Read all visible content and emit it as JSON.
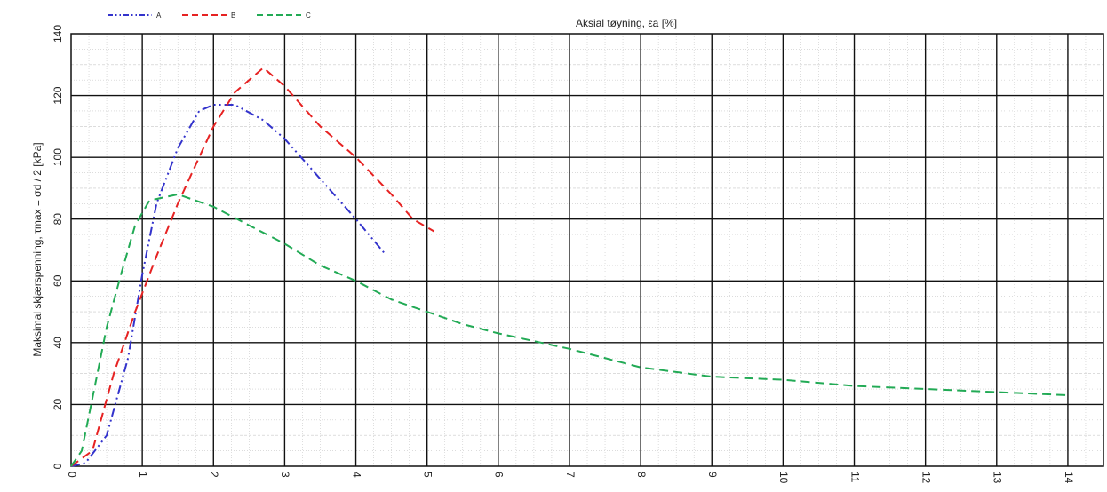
{
  "chart_data": {
    "type": "line",
    "xlabel": "Aksial tøyning, εa [%]",
    "ylabel": "Maksimal skjærspenning, τmax = σd / 2 [kPa]",
    "xlim": [
      0,
      14.5
    ],
    "ylim": [
      0,
      140
    ],
    "x_ticks": [
      "0",
      "1",
      "2",
      "3",
      "4",
      "5",
      "6",
      "7",
      "8",
      "9",
      "10",
      "11",
      "12",
      "13",
      "14"
    ],
    "y_ticks": [
      "0",
      "20",
      "40",
      "60",
      "80",
      "100",
      "120",
      "140"
    ],
    "grid": true,
    "legend_position": "top-left",
    "series": [
      {
        "name": "A",
        "color": "#3333cc",
        "dash": "dash-dot-dot",
        "points": [
          [
            0,
            0
          ],
          [
            0.2,
            1
          ],
          [
            0.5,
            10
          ],
          [
            0.8,
            35
          ],
          [
            1.0,
            62
          ],
          [
            1.2,
            85
          ],
          [
            1.5,
            103
          ],
          [
            1.8,
            115
          ],
          [
            2.0,
            117
          ],
          [
            2.3,
            117
          ],
          [
            2.7,
            112
          ],
          [
            3.0,
            106
          ],
          [
            3.5,
            93
          ],
          [
            4.0,
            80
          ],
          [
            4.4,
            69
          ]
        ]
      },
      {
        "name": "B",
        "color": "#e62222",
        "dash": "dash",
        "points": [
          [
            0,
            0
          ],
          [
            0.3,
            5
          ],
          [
            0.6,
            30
          ],
          [
            0.9,
            50
          ],
          [
            1.2,
            68
          ],
          [
            1.5,
            85
          ],
          [
            1.8,
            100
          ],
          [
            2.0,
            110
          ],
          [
            2.3,
            121
          ],
          [
            2.7,
            129
          ],
          [
            3.0,
            123
          ],
          [
            3.5,
            110
          ],
          [
            4.0,
            100
          ],
          [
            4.5,
            88
          ],
          [
            4.8,
            80
          ],
          [
            5.1,
            76
          ]
        ]
      },
      {
        "name": "C",
        "color": "#22aa55",
        "dash": "dash",
        "points": [
          [
            0,
            0
          ],
          [
            0.15,
            5
          ],
          [
            0.3,
            22
          ],
          [
            0.5,
            45
          ],
          [
            0.7,
            62
          ],
          [
            0.9,
            78
          ],
          [
            1.1,
            86
          ],
          [
            1.5,
            88
          ],
          [
            2.0,
            84
          ],
          [
            2.5,
            78
          ],
          [
            3.0,
            72
          ],
          [
            3.5,
            65
          ],
          [
            4.0,
            60
          ],
          [
            4.5,
            54
          ],
          [
            5.0,
            50
          ],
          [
            5.5,
            46
          ],
          [
            6.0,
            43
          ],
          [
            7.0,
            38
          ],
          [
            8.0,
            32
          ],
          [
            9.0,
            29
          ],
          [
            10.0,
            28
          ],
          [
            11.0,
            26
          ],
          [
            12.0,
            25
          ],
          [
            13.0,
            24
          ],
          [
            14.0,
            23
          ]
        ]
      }
    ]
  }
}
